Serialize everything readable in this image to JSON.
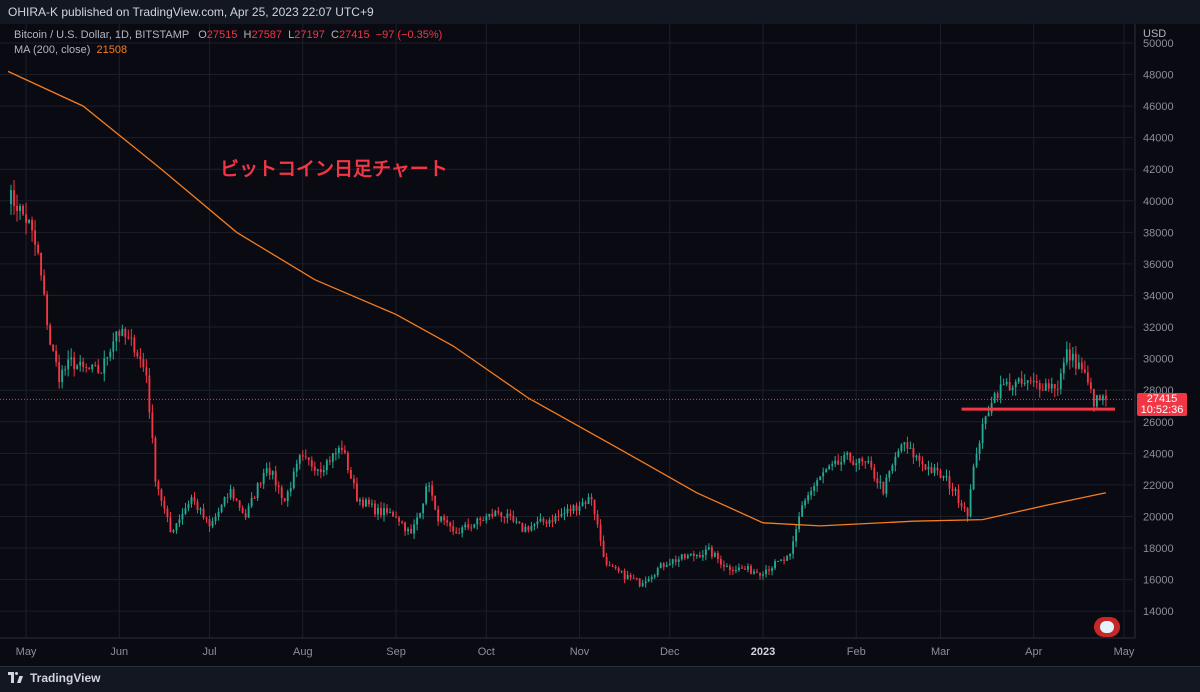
{
  "header": {
    "text": "OHIRA-K published on TradingView.com, Apr 25, 2023 22:07 UTC+9"
  },
  "legend": {
    "symbol": "Bitcoin / U.S. Dollar, 1D, BITSTAMP",
    "o_label": "O",
    "o": "27515",
    "h_label": "H",
    "h": "27587",
    "l_label": "L",
    "l": "27197",
    "c_label": "C",
    "c": "27415",
    "change": "−97 (−0.35%)",
    "ma_label": "MA (200, close)",
    "ma_value": "21508"
  },
  "annotation": "ビットコイン日足チャート",
  "price_label": {
    "price": "27415",
    "countdown": "10:52:36"
  },
  "currency": "USD",
  "footer": {
    "brand": "TradingView"
  },
  "colors": {
    "up": "#22ab94",
    "down": "#f23645",
    "ma": "#f57c1f",
    "background": "#0a0a12",
    "grid": "#1c1f2b"
  },
  "chart_data": {
    "type": "candlestick",
    "title": "Bitcoin / U.S. Dollar, 1D, BITSTAMP",
    "ylabel": "USD",
    "ylim": [
      12300,
      51200
    ],
    "y_ticks": [
      14000,
      16000,
      18000,
      20000,
      22000,
      24000,
      26000,
      28000,
      30000,
      32000,
      34000,
      36000,
      38000,
      40000,
      42000,
      44000,
      46000,
      48000,
      50000
    ],
    "x_start": "2022-04-25",
    "x_end": "2023-05-04",
    "x_ticks": [
      {
        "date": "2022-05-01",
        "label": "May"
      },
      {
        "date": "2022-06-01",
        "label": "Jun"
      },
      {
        "date": "2022-07-01",
        "label": "Jul"
      },
      {
        "date": "2022-08-01",
        "label": "Aug"
      },
      {
        "date": "2022-09-01",
        "label": "Sep"
      },
      {
        "date": "2022-10-01",
        "label": "Oct"
      },
      {
        "date": "2022-11-01",
        "label": "Nov"
      },
      {
        "date": "2022-12-01",
        "label": "Dec"
      },
      {
        "date": "2023-01-01",
        "label": "2023"
      },
      {
        "date": "2023-02-01",
        "label": "Feb"
      },
      {
        "date": "2023-03-01",
        "label": "Mar"
      },
      {
        "date": "2023-04-01",
        "label": "Apr"
      },
      {
        "date": "2023-05-01",
        "label": "May"
      }
    ],
    "close_path": [
      {
        "date": "2022-04-25",
        "close": 40400
      },
      {
        "date": "2022-04-28",
        "close": 39700
      },
      {
        "date": "2022-05-02",
        "close": 38500
      },
      {
        "date": "2022-05-05",
        "close": 36500
      },
      {
        "date": "2022-05-09",
        "close": 31000
      },
      {
        "date": "2022-05-12",
        "close": 28900
      },
      {
        "date": "2022-05-16",
        "close": 29800
      },
      {
        "date": "2022-05-20",
        "close": 29300
      },
      {
        "date": "2022-05-26",
        "close": 29200
      },
      {
        "date": "2022-05-31",
        "close": 31800
      },
      {
        "date": "2022-06-06",
        "close": 30800
      },
      {
        "date": "2022-06-10",
        "close": 29000
      },
      {
        "date": "2022-06-13",
        "close": 22500
      },
      {
        "date": "2022-06-18",
        "close": 19000
      },
      {
        "date": "2022-06-25",
        "close": 21200
      },
      {
        "date": "2022-07-01",
        "close": 19300
      },
      {
        "date": "2022-07-08",
        "close": 21600
      },
      {
        "date": "2022-07-13",
        "close": 20000
      },
      {
        "date": "2022-07-20",
        "close": 23300
      },
      {
        "date": "2022-07-26",
        "close": 21000
      },
      {
        "date": "2022-07-31",
        "close": 23600
      },
      {
        "date": "2022-08-07",
        "close": 23100
      },
      {
        "date": "2022-08-14",
        "close": 24400
      },
      {
        "date": "2022-08-19",
        "close": 21200
      },
      {
        "date": "2022-08-26",
        "close": 20300
      },
      {
        "date": "2022-09-01",
        "close": 20100
      },
      {
        "date": "2022-09-06",
        "close": 18800
      },
      {
        "date": "2022-09-12",
        "close": 22200
      },
      {
        "date": "2022-09-14",
        "close": 20200
      },
      {
        "date": "2022-09-20",
        "close": 18900
      },
      {
        "date": "2022-10-05",
        "close": 20300
      },
      {
        "date": "2022-10-13",
        "close": 19200
      },
      {
        "date": "2022-10-25",
        "close": 20000
      },
      {
        "date": "2022-11-05",
        "close": 21200
      },
      {
        "date": "2022-11-08",
        "close": 18500
      },
      {
        "date": "2022-11-10",
        "close": 16800
      },
      {
        "date": "2022-11-21",
        "close": 15800
      },
      {
        "date": "2022-11-30",
        "close": 17100
      },
      {
        "date": "2022-12-14",
        "close": 17800
      },
      {
        "date": "2022-12-20",
        "close": 16800
      },
      {
        "date": "2022-12-31",
        "close": 16500
      },
      {
        "date": "2023-01-10",
        "close": 17400
      },
      {
        "date": "2023-01-14",
        "close": 20800
      },
      {
        "date": "2023-01-21",
        "close": 22700
      },
      {
        "date": "2023-01-29",
        "close": 23700
      },
      {
        "date": "2023-02-05",
        "close": 23200
      },
      {
        "date": "2023-02-10",
        "close": 21700
      },
      {
        "date": "2023-02-16",
        "close": 24600
      },
      {
        "date": "2023-02-24",
        "close": 23200
      },
      {
        "date": "2023-03-03",
        "close": 22300
      },
      {
        "date": "2023-03-10",
        "close": 20300
      },
      {
        "date": "2023-03-13",
        "close": 24200
      },
      {
        "date": "2023-03-18",
        "close": 27500
      },
      {
        "date": "2023-03-22",
        "close": 28300
      },
      {
        "date": "2023-03-31",
        "close": 28400
      },
      {
        "date": "2023-04-09",
        "close": 28300
      },
      {
        "date": "2023-04-12",
        "close": 30300
      },
      {
        "date": "2023-04-17",
        "close": 29400
      },
      {
        "date": "2023-04-21",
        "close": 27300
      },
      {
        "date": "2023-04-25",
        "close": 27415
      }
    ],
    "ma_200": [
      {
        "date": "2022-04-25",
        "value": 48200
      },
      {
        "date": "2022-05-20",
        "value": 46000
      },
      {
        "date": "2022-06-15",
        "value": 42000
      },
      {
        "date": "2022-07-10",
        "value": 38000
      },
      {
        "date": "2022-08-05",
        "value": 35000
      },
      {
        "date": "2022-09-01",
        "value": 32800
      },
      {
        "date": "2022-09-20",
        "value": 30800
      },
      {
        "date": "2022-10-15",
        "value": 27500
      },
      {
        "date": "2022-11-15",
        "value": 24200
      },
      {
        "date": "2022-12-10",
        "value": 21500
      },
      {
        "date": "2023-01-01",
        "value": 19600
      },
      {
        "date": "2023-01-20",
        "value": 19400
      },
      {
        "date": "2023-02-20",
        "value": 19700
      },
      {
        "date": "2023-03-15",
        "value": 19800
      },
      {
        "date": "2023-04-05",
        "value": 20700
      },
      {
        "date": "2023-04-25",
        "value": 21508
      }
    ],
    "horizontal_line": {
      "value": 26800,
      "from": "2023-03-08",
      "to": "2023-04-28",
      "color": "#f23645"
    },
    "last_price": 27415
  }
}
